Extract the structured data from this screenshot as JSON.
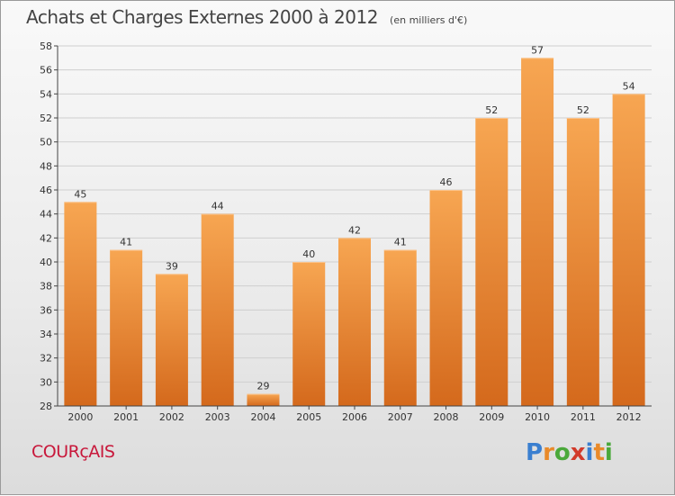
{
  "title": "Achats et Charges Externes 2000 à 2012",
  "unit": "(en milliers d'€)",
  "commune": "COURçAIS",
  "logo": {
    "text": "Proxiti",
    "letter_colors": [
      "#3a7fd0",
      "#e98a2a",
      "#4aa83a",
      "#d23a2a",
      "#3a7fd0",
      "#e98a2a",
      "#4aa83a"
    ]
  },
  "colors": {
    "bar_light": "#f7a652",
    "bar_dark": "#d4691c",
    "axis": "#444444",
    "grid": "#cfcfcf"
  },
  "chart_data": {
    "type": "bar",
    "categories": [
      "2000",
      "2001",
      "2002",
      "2003",
      "2004",
      "2005",
      "2006",
      "2007",
      "2008",
      "2009",
      "2010",
      "2011",
      "2012"
    ],
    "values": [
      45,
      41,
      39,
      44,
      29,
      40,
      42,
      41,
      46,
      52,
      57,
      52,
      54
    ],
    "ylim": [
      28,
      58
    ],
    "yticks": [
      28,
      30,
      32,
      34,
      36,
      38,
      40,
      42,
      44,
      46,
      48,
      50,
      52,
      54,
      56,
      58
    ],
    "grid": true,
    "data_labels": true
  }
}
